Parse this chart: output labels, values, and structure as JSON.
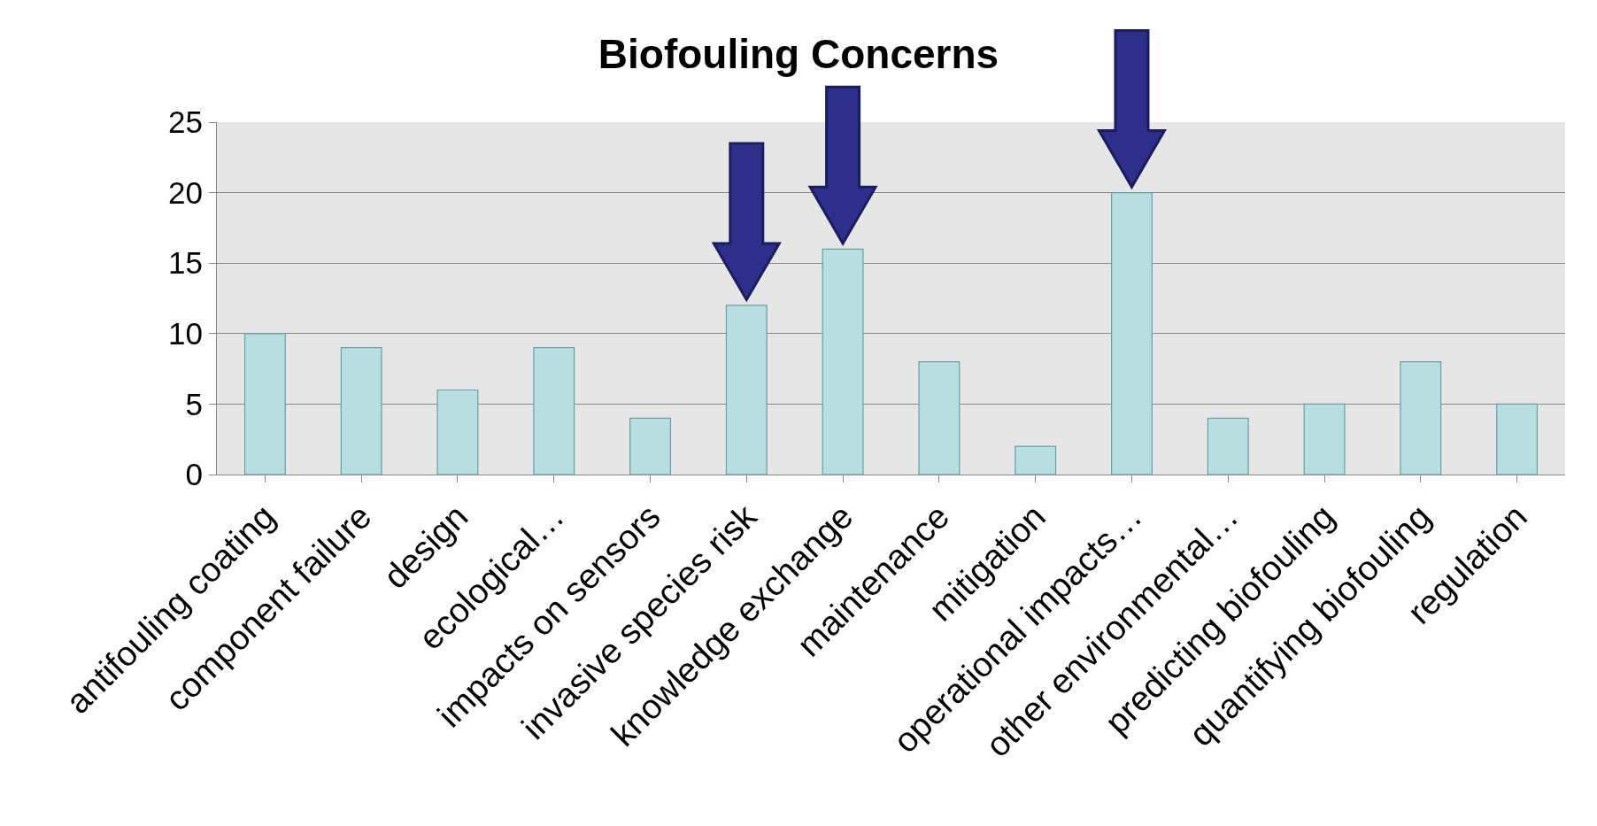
{
  "chart_data": {
    "type": "bar",
    "title": "Biofouling Concerns",
    "categories": [
      "antifouling coating",
      "component failure",
      "design",
      "ecological…",
      "impacts on sensors",
      "invasive species risk",
      "knowledge exchange",
      "maintenance",
      "mitigation",
      "operational impacts…",
      "other environmental…",
      "predicting biofouling",
      "quantifying biofouling",
      "regulation"
    ],
    "values": [
      10,
      9,
      6,
      9,
      4,
      12,
      16,
      8,
      2,
      20,
      4,
      5,
      8,
      5
    ],
    "color": "#b7dee1",
    "ylim": [
      0,
      25
    ],
    "yticks": [
      0,
      5,
      10,
      15,
      20,
      25
    ],
    "grid": "y"
  }
}
